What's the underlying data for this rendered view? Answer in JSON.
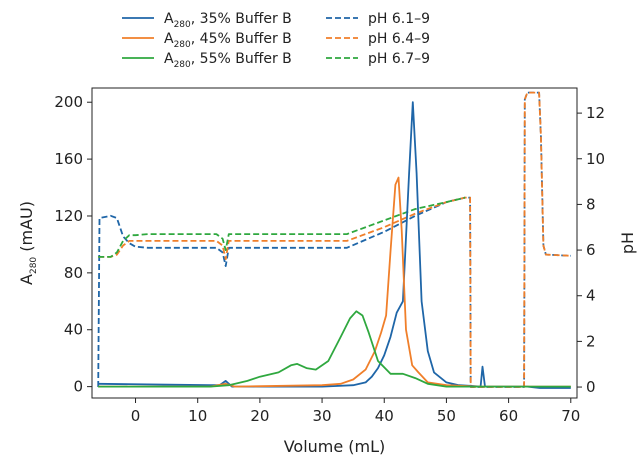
{
  "chart_data": {
    "type": "line",
    "xlabel": "Volume (mL)",
    "ylabel_left": {
      "main": "A",
      "sub": "280",
      "rest": " (mAU)"
    },
    "ylabel_right": "pH",
    "xlim": [
      -7,
      71
    ],
    "ylim_left": [
      -8,
      210
    ],
    "ylim_right": [
      -0.48,
      13.1
    ],
    "x_ticks": [
      0,
      10,
      20,
      30,
      40,
      50,
      60,
      70
    ],
    "y_ticks_left": [
      0,
      40,
      80,
      120,
      160,
      200
    ],
    "y_ticks_right": [
      0,
      2,
      4,
      6,
      8,
      10,
      12
    ],
    "grid": false,
    "legend_placement": "top",
    "series": [
      {
        "name_main": "A",
        "name_sub": "280",
        "name_rest": ", 35% Buffer B",
        "axis": "left",
        "color": "#1f66a8",
        "dash": false,
        "x": [
          -6,
          12,
          13.5,
          14.5,
          15.5,
          30,
          35,
          37,
          38,
          39,
          40,
          41,
          42,
          43,
          44,
          44.6,
          45.2,
          46,
          47,
          48,
          50,
          52,
          54,
          55.5,
          55.8,
          56.2,
          60,
          63,
          65,
          70
        ],
        "y": [
          2,
          1,
          1,
          4,
          0,
          0,
          1,
          3,
          7,
          13,
          22,
          35,
          52,
          60,
          150,
          200,
          150,
          60,
          25,
          10,
          3,
          1,
          0.5,
          0,
          14,
          0,
          0,
          0,
          -1,
          -1
        ]
      },
      {
        "name_main": "A",
        "name_sub": "280",
        "name_rest": ", 45% Buffer B",
        "axis": "left",
        "color": "#f07f2a",
        "dash": false,
        "x": [
          -6,
          12,
          14.5,
          16,
          30,
          33,
          35,
          37,
          38.5,
          39.5,
          40.3,
          41,
          41.8,
          42.3,
          42.8,
          43.5,
          44.5,
          45.5,
          47,
          50,
          55,
          60,
          70
        ],
        "y": [
          0,
          0,
          2,
          0,
          1,
          2,
          5,
          12,
          25,
          38,
          50,
          95,
          142,
          147,
          110,
          40,
          15,
          10,
          3,
          1,
          0,
          0,
          0
        ]
      },
      {
        "name_main": "A",
        "name_sub": "280",
        "name_rest": ", 55% Buffer B",
        "axis": "left",
        "color": "#2fa83f",
        "dash": false,
        "x": [
          -6,
          12,
          15,
          18,
          20,
          23,
          25,
          26,
          27.5,
          29,
          31,
          33,
          34.5,
          35.5,
          36.5,
          37.5,
          39,
          41,
          43,
          45,
          47,
          50,
          55,
          60,
          70
        ],
        "y": [
          0,
          0,
          1,
          4,
          7,
          10,
          15,
          16,
          13,
          12,
          18,
          35,
          48,
          53,
          50,
          38,
          18,
          9,
          9,
          6,
          2,
          0,
          0,
          0,
          0
        ]
      },
      {
        "name": "pH 6.1–9",
        "axis": "right",
        "color": "#1f66a8",
        "dash": true,
        "x": [
          -6,
          -5.8,
          -4,
          -3,
          -2,
          -1,
          0,
          2,
          13,
          14,
          14.5,
          15,
          16,
          20,
          34,
          40,
          45,
          50,
          53,
          53.8,
          53.9,
          62.5,
          62.6,
          63,
          64.9,
          65.2,
          65.6,
          66,
          70
        ],
        "y": [
          0,
          7.4,
          7.5,
          7.4,
          6.6,
          6.3,
          6.15,
          6.1,
          6.1,
          5.9,
          5.3,
          6.1,
          6.1,
          6.1,
          6.1,
          6.8,
          7.5,
          8.1,
          8.3,
          8.3,
          0,
          0,
          12.6,
          12.9,
          12.9,
          11,
          6.2,
          5.8,
          5.75
        ]
      },
      {
        "name": "pH 6.4–9",
        "axis": "right",
        "color": "#f07f2a",
        "dash": true,
        "x": [
          -6,
          -4,
          -3,
          -2,
          -1,
          0,
          2,
          13,
          14,
          14.5,
          15,
          16,
          20,
          34,
          40,
          45,
          50,
          53,
          53.8,
          53.9,
          62.5,
          62.6,
          63,
          64.9,
          65.2,
          65.6,
          66,
          70
        ],
        "y": [
          5.7,
          5.7,
          5.8,
          6.2,
          6.4,
          6.4,
          6.4,
          6.4,
          6.2,
          5.6,
          6.4,
          6.4,
          6.4,
          6.4,
          7.0,
          7.6,
          8.1,
          8.3,
          8.3,
          0,
          0,
          12.6,
          12.9,
          12.9,
          11,
          6.2,
          5.8,
          5.75
        ]
      },
      {
        "name": "pH 6.7–9",
        "axis": "right",
        "color": "#2fa83f",
        "dash": true,
        "x": [
          -6,
          -4,
          -3,
          -2,
          -1,
          0,
          2,
          13,
          14,
          14.5,
          15,
          16,
          20,
          34,
          40,
          45,
          50,
          53
        ],
        "y": [
          5.7,
          5.7,
          5.9,
          6.4,
          6.65,
          6.65,
          6.7,
          6.7,
          6.5,
          6.0,
          6.7,
          6.7,
          6.7,
          6.7,
          7.3,
          7.8,
          8.1,
          8.3
        ]
      }
    ]
  }
}
